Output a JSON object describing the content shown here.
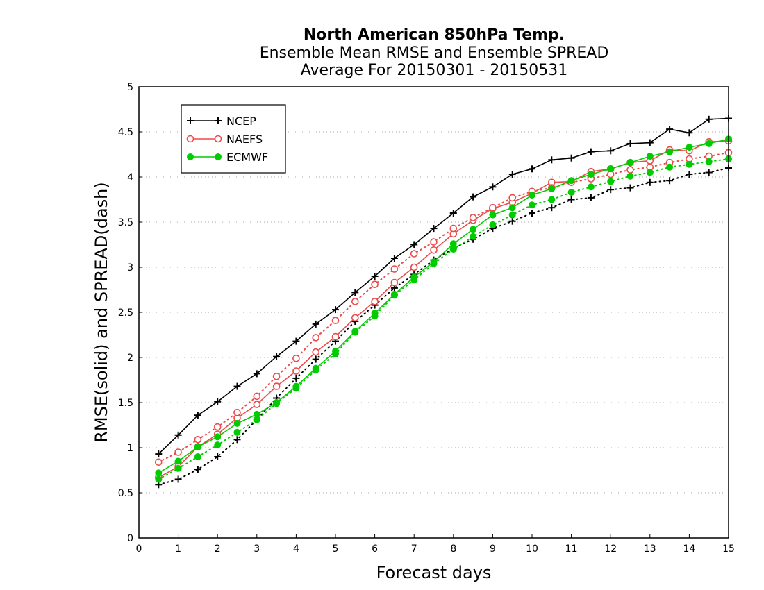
{
  "title_lines": [
    "North American 850hPa Temp.",
    "Ensemble Mean RMSE and Ensemble SPREAD",
    "Average For 20150301 - 20150531"
  ],
  "chart_data": {
    "type": "line",
    "title": "North American 850hPa Temp. Ensemble Mean RMSE and Ensemble SPREAD Average For 20150301 - 20150531",
    "xlabel": "Forecast days",
    "ylabel": "RMSE(solid) and SPREAD(dash)",
    "xlim": [
      0,
      15
    ],
    "ylim": [
      0,
      5
    ],
    "xticks": [
      "0",
      "1",
      "2",
      "3",
      "4",
      "5",
      "6",
      "7",
      "8",
      "9",
      "10",
      "11",
      "12",
      "13",
      "14",
      "15"
    ],
    "yticks": [
      "0",
      "0.5",
      "1",
      "1.5",
      "2",
      "2.5",
      "3",
      "3.5",
      "4",
      "4.5",
      "5"
    ],
    "grid": "horizontal dotted",
    "legend_position": "top-left",
    "x": [
      0.5,
      1,
      1.5,
      2,
      2.5,
      3,
      3.5,
      4,
      4.5,
      5,
      5.5,
      6,
      6.5,
      7,
      7.5,
      8,
      8.5,
      9,
      9.5,
      10,
      10.5,
      11,
      11.5,
      12,
      12.5,
      13,
      13.5,
      14,
      14.5,
      15
    ],
    "series": [
      {
        "name": "NCEP",
        "metric": "RMSE",
        "style": "solid",
        "color": "#000000",
        "marker": "plus",
        "values": [
          0.93,
          1.14,
          1.36,
          1.51,
          1.68,
          1.82,
          2.01,
          2.18,
          2.37,
          2.53,
          2.72,
          2.9,
          3.1,
          3.25,
          3.43,
          3.6,
          3.78,
          3.89,
          4.03,
          4.09,
          4.19,
          4.21,
          4.28,
          4.29,
          4.37,
          4.38,
          4.53,
          4.49,
          4.64,
          4.65
        ]
      },
      {
        "name": "NCEP",
        "metric": "SPREAD",
        "style": "dotted",
        "color": "#000000",
        "marker": "plus",
        "values": [
          0.59,
          0.65,
          0.76,
          0.9,
          1.09,
          1.31,
          1.55,
          1.77,
          1.98,
          2.18,
          2.4,
          2.58,
          2.77,
          2.92,
          3.08,
          3.21,
          3.31,
          3.43,
          3.51,
          3.6,
          3.66,
          3.75,
          3.77,
          3.86,
          3.88,
          3.94,
          3.96,
          4.03,
          4.05,
          4.1
        ]
      },
      {
        "name": "NAEFS",
        "metric": "RMSE",
        "style": "solid",
        "color": "#ec4a4a",
        "marker": "open-circle",
        "values": [
          0.67,
          0.79,
          1.01,
          1.15,
          1.33,
          1.48,
          1.68,
          1.85,
          2.06,
          2.23,
          2.44,
          2.62,
          2.83,
          3.0,
          3.19,
          3.37,
          3.52,
          3.65,
          3.72,
          3.82,
          3.94,
          3.95,
          4.06,
          4.09,
          4.16,
          4.18,
          4.3,
          4.29,
          4.39,
          4.4
        ]
      },
      {
        "name": "NAEFS",
        "metric": "SPREAD",
        "style": "dotted",
        "color": "#ec4a4a",
        "marker": "open-circle",
        "values": [
          0.84,
          0.95,
          1.09,
          1.23,
          1.39,
          1.57,
          1.79,
          1.99,
          2.22,
          2.41,
          2.62,
          2.81,
          2.98,
          3.15,
          3.28,
          3.43,
          3.55,
          3.66,
          3.77,
          3.84,
          3.88,
          3.94,
          3.98,
          4.03,
          4.08,
          4.11,
          4.16,
          4.2,
          4.23,
          4.27
        ]
      },
      {
        "name": "ECMWF",
        "metric": "RMSE",
        "style": "solid",
        "color": "#00cc00",
        "marker": "filled-circle",
        "values": [
          0.72,
          0.85,
          1.01,
          1.12,
          1.27,
          1.37,
          1.5,
          1.68,
          1.88,
          2.07,
          2.29,
          2.49,
          2.7,
          2.89,
          3.06,
          3.26,
          3.42,
          3.58,
          3.66,
          3.8,
          3.87,
          3.96,
          4.03,
          4.09,
          4.16,
          4.23,
          4.28,
          4.33,
          4.37,
          4.42
        ]
      },
      {
        "name": "ECMWF",
        "metric": "SPREAD",
        "style": "dotted",
        "color": "#00cc00",
        "marker": "filled-circle",
        "values": [
          0.65,
          0.77,
          0.9,
          1.03,
          1.17,
          1.31,
          1.49,
          1.66,
          1.86,
          2.04,
          2.28,
          2.46,
          2.69,
          2.86,
          3.04,
          3.2,
          3.34,
          3.47,
          3.58,
          3.69,
          3.75,
          3.83,
          3.89,
          3.95,
          4.01,
          4.05,
          4.11,
          4.14,
          4.17,
          4.2
        ]
      }
    ],
    "legend": [
      {
        "label": "NCEP",
        "color": "#000000",
        "marker": "plus"
      },
      {
        "label": "NAEFS",
        "color": "#ec4a4a",
        "marker": "open-circle"
      },
      {
        "label": "ECMWF",
        "color": "#00cc00",
        "marker": "filled-circle"
      }
    ]
  }
}
